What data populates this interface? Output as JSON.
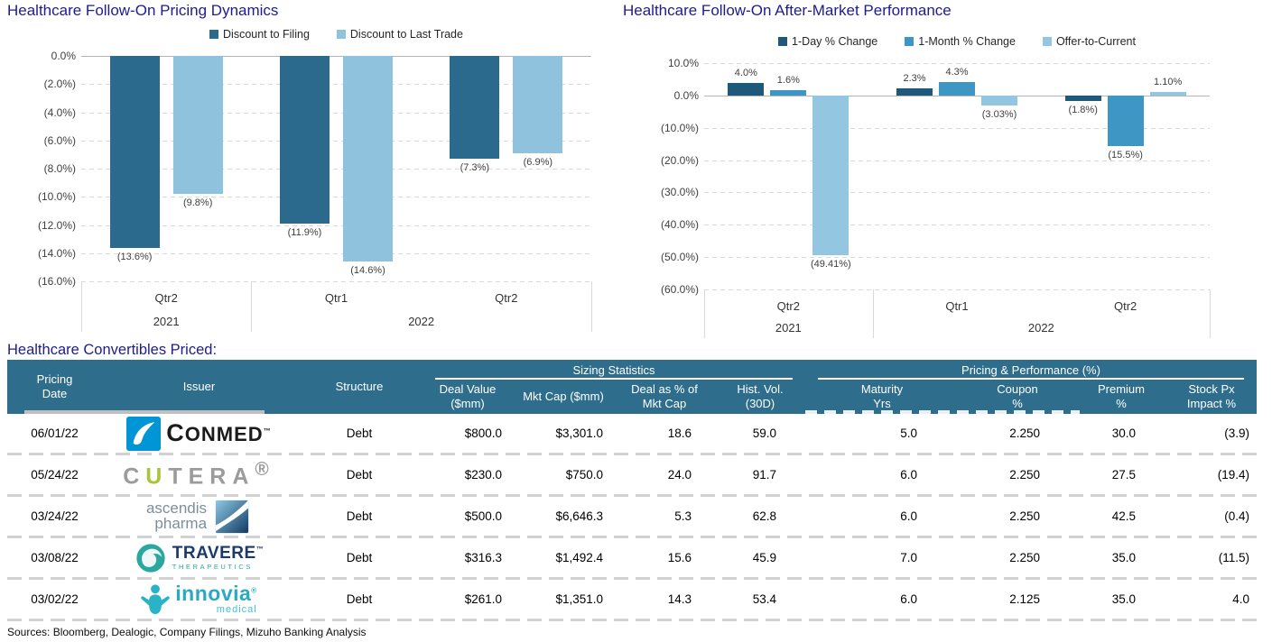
{
  "colors": {
    "title_navy": "#1e1c8e",
    "header_teal": "#2e6e8c",
    "grid_gray": "#d9d9d9",
    "axis_text": "#3f3f3f"
  },
  "chart_data": [
    {
      "type": "bar",
      "title": "Healthcare Follow-On Pricing Dynamics",
      "categories": [
        "Qtr2",
        "Qtr1",
        "Qtr2"
      ],
      "year_groups": [
        {
          "label": "2021",
          "count": 1
        },
        {
          "label": "2022",
          "count": 2
        }
      ],
      "ylim": [
        -16,
        0
      ],
      "grid": "dashed",
      "legend_position": "top",
      "yticks": [
        {
          "v": 0,
          "label": "0.0%"
        },
        {
          "v": -2,
          "label": "(2.0%)"
        },
        {
          "v": -4,
          "label": "(4.0%)"
        },
        {
          "v": -6,
          "label": "(6.0%)"
        },
        {
          "v": -8,
          "label": "(8.0%)"
        },
        {
          "v": -10,
          "label": "(10.0%)"
        },
        {
          "v": -12,
          "label": "(12.0%)"
        },
        {
          "v": -14,
          "label": "(14.0%)"
        },
        {
          "v": -16,
          "label": "(16.0%)"
        }
      ],
      "series": [
        {
          "name": "Discount to Filing",
          "color": "#2b6a8c",
          "values": [
            -13.6,
            -11.9,
            -7.3
          ],
          "value_labels": [
            "(13.6%)",
            "(11.9%)",
            "(7.3%)"
          ]
        },
        {
          "name": "Discount to Last Trade",
          "color": "#8fc2dd",
          "values": [
            -9.8,
            -14.6,
            -6.9
          ],
          "value_labels": [
            "(9.8%)",
            "(14.6%)",
            "(6.9%)"
          ]
        }
      ]
    },
    {
      "type": "bar",
      "title": "Healthcare Follow-On After-Market Performance",
      "categories": [
        "Qtr2",
        "Qtr1",
        "Qtr2"
      ],
      "year_groups": [
        {
          "label": "2021",
          "count": 1
        },
        {
          "label": "2022",
          "count": 2
        }
      ],
      "ylim": [
        -60,
        10
      ],
      "grid": "dashed",
      "legend_position": "top",
      "yticks": [
        {
          "v": 10,
          "label": "10.0%"
        },
        {
          "v": 0,
          "label": "0.0%"
        },
        {
          "v": -10,
          "label": "(10.0%)"
        },
        {
          "v": -20,
          "label": "(20.0%)"
        },
        {
          "v": -30,
          "label": "(30.0%)"
        },
        {
          "v": -40,
          "label": "(40.0%)"
        },
        {
          "v": -50,
          "label": "(50.0%)"
        },
        {
          "v": -60,
          "label": "(60.0%)"
        }
      ],
      "series": [
        {
          "name": "1-Day % Change",
          "color": "#1f5979",
          "values": [
            4.0,
            2.3,
            -1.8
          ],
          "value_labels": [
            "4.0%",
            "2.3%",
            "(1.8%)"
          ]
        },
        {
          "name": "1-Month % Change",
          "color": "#3e96c4",
          "values": [
            1.6,
            4.3,
            -15.5
          ],
          "value_labels": [
            "1.6%",
            "4.3%",
            "(15.5%)"
          ]
        },
        {
          "name": "Offer-to-Current",
          "color": "#93c6e0",
          "values": [
            -49.41,
            -3.03,
            1.1
          ],
          "value_labels": [
            "(49.41%)",
            "(3.03%)",
            "1.10%"
          ]
        }
      ]
    }
  ],
  "table": {
    "title": "Healthcare Convertibles Priced:",
    "group_headers": [
      {
        "label": "Sizing Statistics"
      },
      {
        "label": "Pricing & Performance (%)"
      }
    ],
    "columns": [
      {
        "label": "Pricing\nDate"
      },
      {
        "label": "Issuer"
      },
      {
        "label": "Structure"
      },
      {
        "label": "Deal Value\n($mm)"
      },
      {
        "label": "Mkt Cap ($mm)"
      },
      {
        "label": "Deal as % of\nMkt Cap"
      },
      {
        "label": "Hist. Vol.\n(30D)"
      },
      {
        "label": "Maturity\nYrs"
      },
      {
        "label": "Coupon\n%"
      },
      {
        "label": "Premium\n%"
      },
      {
        "label": "Stock Px\nImpact %"
      }
    ],
    "rows": [
      {
        "date": "06/01/22",
        "issuer": "ConMed",
        "logo": "conmed",
        "cells": [
          "Debt",
          "$800.0",
          "$3,301.0",
          "18.6",
          "59.0",
          "5.0",
          "2.250",
          "30.0",
          "(3.9)"
        ]
      },
      {
        "date": "05/24/22",
        "issuer": "Cutera",
        "logo": "cutera",
        "cells": [
          "Debt",
          "$230.0",
          "$750.0",
          "24.0",
          "91.7",
          "6.0",
          "2.250",
          "27.5",
          "(19.4)"
        ]
      },
      {
        "date": "03/24/22",
        "issuer": "Ascendis Pharma",
        "logo": "ascendis",
        "cells": [
          "Debt",
          "$500.0",
          "$6,646.3",
          "5.3",
          "62.8",
          "6.0",
          "2.250",
          "42.5",
          "(0.4)"
        ]
      },
      {
        "date": "03/08/22",
        "issuer": "Travere Therapeutics",
        "logo": "travere",
        "cells": [
          "Debt",
          "$316.3",
          "$1,492.4",
          "15.6",
          "45.9",
          "7.0",
          "2.250",
          "35.0",
          "(11.5)"
        ]
      },
      {
        "date": "03/02/22",
        "issuer": "Innovia Medical",
        "logo": "innovia",
        "cells": [
          "Debt",
          "$261.0",
          "$1,351.0",
          "14.3",
          "53.4",
          "6.0",
          "2.125",
          "35.0",
          "4.0"
        ]
      }
    ],
    "source_note": "Sources: Bloomberg, Dealogic, Company Filings, Mizuho Banking Analysis"
  },
  "logos": {
    "conmed": {
      "blue": "#0095d5",
      "text_color": "#1b1b1b",
      "wordmark": "CONMED",
      "tm": "™"
    },
    "cutera": {
      "gray": "#9b9b9b",
      "green": "#a9c43c",
      "wordmark": "CUTERA",
      "reg": "®"
    },
    "ascendis": {
      "text_color": "#7d8e9c",
      "line1": "ascendis",
      "line2": "pharma",
      "grad_light": "#8ec9e4",
      "grad_dark": "#123a63"
    },
    "travere": {
      "teal": "#2aa79e",
      "navy": "#1b3a6b",
      "name": "TRAVERE",
      "sub": "THERAPEUTICS",
      "tm": "™"
    },
    "innovia": {
      "teal": "#2ab3c6",
      "name": "innovia",
      "sub": "medical",
      "reg": "®"
    }
  }
}
